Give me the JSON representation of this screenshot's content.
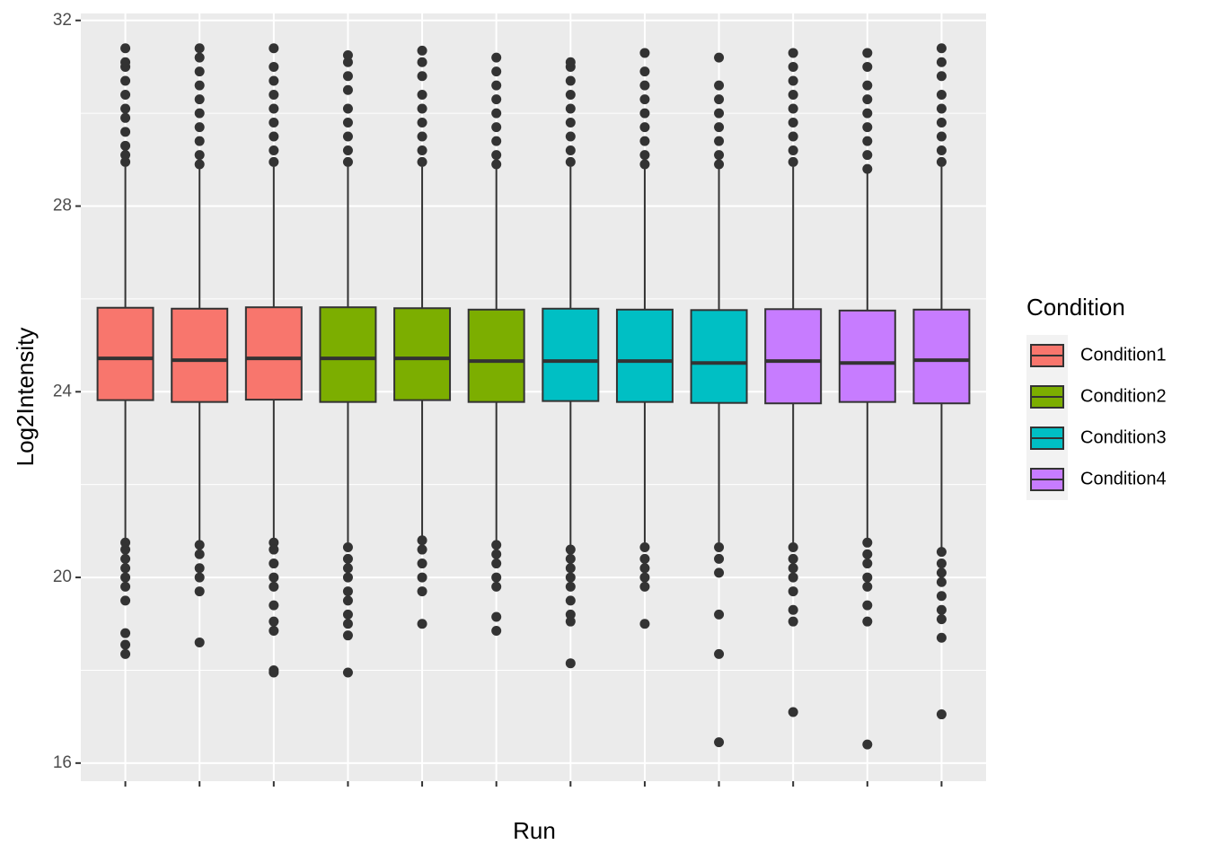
{
  "chart_data": {
    "type": "boxplot",
    "x_label": "Run",
    "y_label": "Log2Intensity",
    "categories": [
      null,
      null,
      null,
      null,
      null,
      null,
      null,
      null,
      null,
      null,
      null,
      null
    ],
    "ylim": [
      15.61,
      32.15
    ],
    "yticks": [
      16,
      20,
      24,
      28,
      32
    ],
    "grid": true,
    "legend_title": "Condition",
    "legend_position": "right",
    "series": [
      {
        "name": "Condition1",
        "color": "#F8766D",
        "boxes": [
          {
            "q1": 23.82,
            "median": 24.72,
            "q3": 25.81,
            "whisker_low": 20.8,
            "whisker_high": 28.85,
            "outliers": [
              28.95,
              29.1,
              29.3,
              29.6,
              29.9,
              30.1,
              30.4,
              30.7,
              31.0,
              31.1,
              31.4,
              20.75,
              20.6,
              20.4,
              20.2,
              20.0,
              19.8,
              19.5,
              18.8,
              18.55,
              18.35
            ]
          },
          {
            "q1": 23.78,
            "median": 24.68,
            "q3": 25.79,
            "whisker_low": 20.8,
            "whisker_high": 28.8,
            "outliers": [
              28.9,
              29.1,
              29.4,
              29.7,
              30.0,
              30.3,
              30.6,
              30.9,
              31.2,
              31.4,
              20.7,
              20.5,
              20.2,
              20.0,
              19.7,
              18.6
            ]
          },
          {
            "q1": 23.83,
            "median": 24.72,
            "q3": 25.82,
            "whisker_low": 20.85,
            "whisker_high": 28.85,
            "outliers": [
              28.95,
              29.2,
              29.5,
              29.8,
              30.1,
              30.4,
              30.7,
              31.0,
              31.4,
              20.75,
              20.6,
              20.3,
              20.0,
              19.8,
              19.4,
              19.05,
              18.85,
              18.0,
              17.95
            ]
          }
        ]
      },
      {
        "name": "Condition2",
        "color": "#7CAE00",
        "boxes": [
          {
            "q1": 23.78,
            "median": 24.72,
            "q3": 25.82,
            "whisker_low": 20.75,
            "whisker_high": 28.85,
            "outliers": [
              28.95,
              29.2,
              29.5,
              29.8,
              30.1,
              30.5,
              30.8,
              31.1,
              31.25,
              20.65,
              20.4,
              20.2,
              20.0,
              19.7,
              19.5,
              19.2,
              19.0,
              18.75,
              17.95
            ]
          },
          {
            "q1": 23.82,
            "median": 24.72,
            "q3": 25.8,
            "whisker_low": 20.9,
            "whisker_high": 28.85,
            "outliers": [
              28.95,
              29.2,
              29.5,
              29.8,
              30.1,
              30.4,
              30.8,
              31.1,
              31.35,
              20.8,
              20.6,
              20.3,
              20.0,
              19.7,
              19.0
            ]
          },
          {
            "q1": 23.78,
            "median": 24.66,
            "q3": 25.77,
            "whisker_low": 20.75,
            "whisker_high": 28.8,
            "outliers": [
              28.9,
              29.1,
              29.4,
              29.7,
              30.0,
              30.3,
              30.6,
              30.9,
              31.2,
              20.7,
              20.5,
              20.3,
              20.0,
              19.8,
              19.15,
              18.85
            ]
          }
        ]
      },
      {
        "name": "Condition3",
        "color": "#00BFC4",
        "boxes": [
          {
            "q1": 23.8,
            "median": 24.66,
            "q3": 25.79,
            "whisker_low": 20.7,
            "whisker_high": 28.85,
            "outliers": [
              28.95,
              29.2,
              29.5,
              29.8,
              30.1,
              30.4,
              30.7,
              31.0,
              31.1,
              20.6,
              20.4,
              20.2,
              20.0,
              19.8,
              19.5,
              19.2,
              19.05,
              18.15
            ]
          },
          {
            "q1": 23.78,
            "median": 24.66,
            "q3": 25.77,
            "whisker_low": 20.75,
            "whisker_high": 28.8,
            "outliers": [
              28.9,
              29.1,
              29.4,
              29.7,
              30.0,
              30.3,
              30.6,
              30.9,
              31.3,
              20.65,
              20.4,
              20.2,
              20.0,
              19.8,
              19.0
            ]
          },
          {
            "q1": 23.76,
            "median": 24.62,
            "q3": 25.76,
            "whisker_low": 20.75,
            "whisker_high": 28.8,
            "outliers": [
              28.9,
              29.1,
              29.4,
              29.7,
              30.0,
              30.3,
              30.6,
              31.2,
              20.65,
              20.4,
              20.1,
              19.2,
              18.35,
              16.45
            ]
          }
        ]
      },
      {
        "name": "Condition4",
        "color": "#C77CFF",
        "boxes": [
          {
            "q1": 23.75,
            "median": 24.66,
            "q3": 25.78,
            "whisker_low": 20.75,
            "whisker_high": 28.85,
            "outliers": [
              28.95,
              29.2,
              29.5,
              29.8,
              30.1,
              30.4,
              30.7,
              31.0,
              31.3,
              20.65,
              20.4,
              20.2,
              20.0,
              19.7,
              19.3,
              19.05,
              17.1
            ]
          },
          {
            "q1": 23.78,
            "median": 24.62,
            "q3": 25.75,
            "whisker_low": 20.8,
            "whisker_high": 28.7,
            "outliers": [
              28.8,
              29.1,
              29.4,
              29.7,
              30.0,
              30.3,
              30.6,
              31.0,
              31.3,
              20.75,
              20.5,
              20.3,
              20.0,
              19.8,
              19.4,
              19.05,
              16.4
            ]
          },
          {
            "q1": 23.75,
            "median": 24.68,
            "q3": 25.77,
            "whisker_low": 20.65,
            "whisker_high": 28.85,
            "outliers": [
              28.95,
              29.2,
              29.5,
              29.8,
              30.1,
              30.4,
              30.8,
              31.1,
              31.4,
              20.55,
              20.3,
              20.1,
              19.9,
              19.6,
              19.3,
              19.1,
              18.7,
              17.05
            ]
          }
        ]
      }
    ]
  }
}
